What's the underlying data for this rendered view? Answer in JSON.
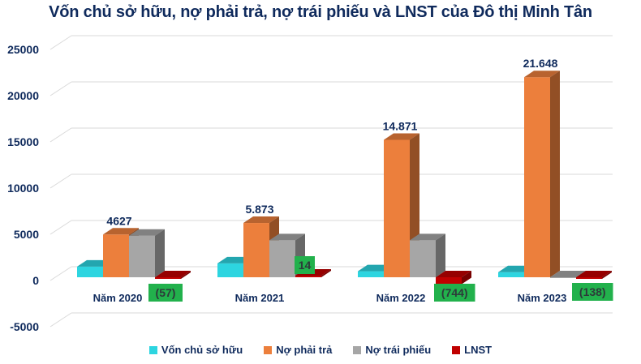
{
  "title": "Vốn chủ sở hữu, nợ phải trả, nợ trái phiếu và LNST của Đô thị Minh Tân",
  "chart_data": {
    "type": "bar",
    "title": "Vốn chủ sở hữu, nợ phải trả, nợ trái phiếu và LNST của Đô thị Minh Tân",
    "xlabel": "",
    "ylabel": "",
    "ylim": [
      -5000,
      25000
    ],
    "yticks": [
      25000,
      20000,
      15000,
      10000,
      5000,
      0,
      -5000
    ],
    "grid": true,
    "legend_position": "bottom",
    "style": "3d-clustered-column",
    "categories": [
      "Năm 2020",
      "Năm 2021",
      "Năm 2022",
      "Năm 2023"
    ],
    "series": [
      {
        "name": "Vốn chủ sở hữu",
        "color": "#2dd5e0",
        "values": [
          1150,
          1500,
          650,
          550
        ]
      },
      {
        "name": "Nợ phải trả",
        "color": "#ec7f3c",
        "values": [
          4627,
          5873,
          14871,
          21648
        ]
      },
      {
        "name": "Nợ trái phiếu",
        "color": "#a6a6a6",
        "values": [
          4500,
          4000,
          4000,
          0
        ]
      },
      {
        "name": "LNST",
        "color": "#c00000",
        "values": [
          -57,
          14,
          -744,
          -138
        ]
      }
    ],
    "data_labels": {
      "Nợ phải trả": [
        "4627",
        "5.873",
        "14.871",
        "21.648"
      ],
      "LNST": [
        "(57)",
        "14",
        "(744)",
        "(138)"
      ]
    },
    "label_box_color": "#22b14c"
  },
  "legend": [
    {
      "label": "Vốn chủ sở hữu",
      "color": "#2dd5e0"
    },
    {
      "label": "Nợ phải trả",
      "color": "#ec7f3c"
    },
    {
      "label": "Nợ trái phiếu",
      "color": "#a6a6a6"
    },
    {
      "label": "LNST",
      "color": "#c00000"
    }
  ]
}
